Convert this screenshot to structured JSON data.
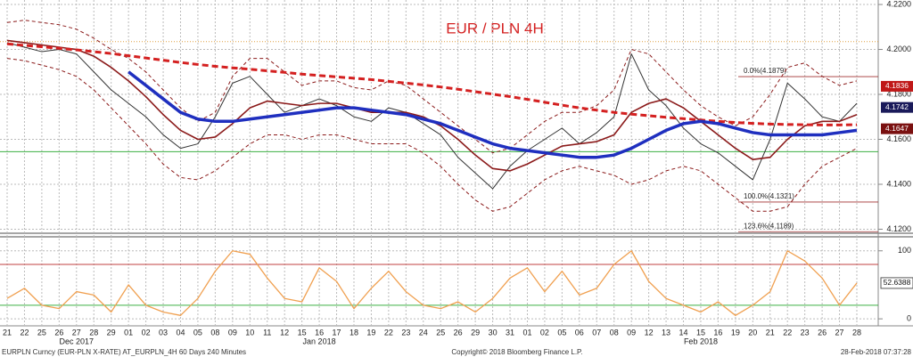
{
  "chart_data": [
    {
      "type": "line",
      "title": "EUR / PLN 4H",
      "categories": [
        "21",
        "22",
        "25",
        "26",
        "27",
        "28",
        "29",
        "01",
        "02",
        "03",
        "04",
        "05",
        "08",
        "09",
        "10",
        "11",
        "12",
        "15",
        "16",
        "17",
        "18",
        "19",
        "22",
        "23",
        "24",
        "25",
        "26",
        "29",
        "30",
        "31",
        "01",
        "02",
        "05",
        "06",
        "07",
        "08",
        "09",
        "12",
        "13",
        "14",
        "15",
        "16",
        "19",
        "20",
        "21",
        "22",
        "23",
        "26",
        "27",
        "28"
      ],
      "x_groups": [
        "Dec 2017",
        "Jan 2018",
        "Feb 2018"
      ],
      "ylim": [
        4.119,
        4.222
      ],
      "yticks": [
        {
          "value": 4.12,
          "label": "4.1200"
        },
        {
          "value": 4.14,
          "label": "4.1400"
        },
        {
          "value": 4.16,
          "label": "4.1600"
        },
        {
          "value": 4.18,
          "label": "4.1800"
        },
        {
          "value": 4.2,
          "label": "4.2000"
        },
        {
          "value": 4.22,
          "label": "4.2200"
        }
      ],
      "grid": true,
      "series": [
        {
          "color": "#8b1a1a",
          "style": "dashed",
          "values": [
            4.212,
            4.213,
            4.212,
            4.211,
            4.209,
            4.205,
            4.2,
            4.196,
            4.19,
            4.182,
            4.174,
            4.168,
            4.172,
            4.188,
            4.196,
            4.196,
            4.19,
            4.184,
            4.186,
            4.186,
            4.183,
            4.182,
            4.186,
            4.184,
            4.178,
            4.172,
            4.166,
            4.16,
            4.154,
            4.156,
            4.162,
            4.168,
            4.172,
            4.172,
            4.175,
            4.182,
            4.2,
            4.198,
            4.19,
            4.182,
            4.175,
            4.17,
            4.166,
            4.17,
            4.18,
            4.192,
            4.194,
            4.188,
            4.184,
            4.186
          ]
        },
        {
          "color": "#8b1a1a",
          "style": "dashed",
          "values": [
            4.196,
            4.195,
            4.193,
            4.191,
            4.188,
            4.182,
            4.174,
            4.166,
            4.158,
            4.149,
            4.143,
            4.142,
            4.146,
            4.152,
            4.158,
            4.162,
            4.162,
            4.16,
            4.162,
            4.162,
            4.16,
            4.158,
            4.158,
            4.158,
            4.154,
            4.148,
            4.14,
            4.133,
            4.128,
            4.13,
            4.136,
            4.142,
            4.146,
            4.148,
            4.146,
            4.144,
            4.14,
            4.142,
            4.146,
            4.148,
            4.146,
            4.14,
            4.134,
            4.128,
            4.128,
            4.13,
            4.14,
            4.148,
            4.152,
            4.156
          ]
        },
        {
          "color": "#333333",
          "style": "thin",
          "values": [
            4.203,
            4.201,
            4.199,
            4.2,
            4.198,
            4.19,
            4.182,
            4.176,
            4.17,
            4.162,
            4.156,
            4.158,
            4.17,
            4.185,
            4.188,
            4.18,
            4.172,
            4.175,
            4.178,
            4.175,
            4.17,
            4.168,
            4.174,
            4.172,
            4.167,
            4.162,
            4.152,
            4.145,
            4.138,
            4.148,
            4.155,
            4.16,
            4.165,
            4.158,
            4.163,
            4.17,
            4.198,
            4.182,
            4.175,
            4.165,
            4.158,
            4.154,
            4.148,
            4.142,
            4.16,
            4.185,
            4.178,
            4.17,
            4.168,
            4.176
          ]
        },
        {
          "color": "#8b1a1a",
          "style": "medium",
          "values": [
            4.204,
            4.203,
            4.202,
            4.201,
            4.2,
            4.197,
            4.192,
            4.186,
            4.179,
            4.171,
            4.164,
            4.16,
            4.161,
            4.167,
            4.174,
            4.177,
            4.176,
            4.175,
            4.176,
            4.176,
            4.174,
            4.172,
            4.172,
            4.172,
            4.17,
            4.166,
            4.16,
            4.153,
            4.147,
            4.146,
            4.149,
            4.153,
            4.157,
            4.158,
            4.159,
            4.162,
            4.172,
            4.176,
            4.178,
            4.174,
            4.168,
            4.162,
            4.156,
            4.151,
            4.152,
            4.16,
            4.166,
            4.168,
            4.168,
            4.171
          ]
        },
        {
          "color": "#d42020",
          "style": "dashed-thick",
          "values": [
            4.2025,
            4.2018,
            4.2012,
            4.2005,
            4.1998,
            4.199,
            4.1982,
            4.1972,
            4.1962,
            4.1952,
            4.1942,
            4.1933,
            4.1925,
            4.1918,
            4.1912,
            4.1905,
            4.1898,
            4.189,
            4.1884,
            4.1878,
            4.1872,
            4.1866,
            4.1858,
            4.185,
            4.1842,
            4.1833,
            4.1823,
            4.1812,
            4.1801,
            4.179,
            4.1778,
            4.1765,
            4.1752,
            4.174,
            4.173,
            4.172,
            4.1712,
            4.1705,
            4.1698,
            4.1692,
            4.1686,
            4.168,
            4.1675,
            4.1671,
            4.1668,
            4.1666,
            4.1665,
            4.1664,
            4.1664,
            4.1665
          ]
        },
        {
          "color": "#1f2fbf",
          "style": "thick",
          "values": [
            null,
            null,
            null,
            null,
            null,
            null,
            null,
            4.19,
            4.184,
            4.178,
            4.172,
            4.169,
            4.168,
            4.168,
            4.169,
            4.17,
            4.171,
            4.172,
            4.173,
            4.174,
            4.174,
            4.173,
            4.172,
            4.171,
            4.169,
            4.167,
            4.164,
            4.161,
            4.158,
            4.156,
            4.155,
            4.154,
            4.153,
            4.152,
            4.152,
            4.153,
            4.156,
            4.16,
            4.164,
            4.167,
            4.168,
            4.167,
            4.165,
            4.163,
            4.162,
            4.162,
            4.162,
            4.162,
            4.163,
            4.164
          ]
        }
      ],
      "hlines": [
        {
          "value": 4.2035,
          "color": "#e0a040"
        },
        {
          "value": 4.1545,
          "color": "#3cb043"
        }
      ],
      "fib_levels": [
        {
          "value": 4.1879,
          "label": "0.0%(4.1879)"
        },
        {
          "value": 4.1321,
          "label": "100.0%(4.1321)"
        },
        {
          "value": 4.1189,
          "label": "123.6%(4.1189)"
        }
      ],
      "value_tags": [
        {
          "value": 4.1836,
          "color": "#c01818"
        },
        {
          "value": 4.1742,
          "color": "#1a1a5a"
        },
        {
          "value": 4.1647,
          "color": "#7a1010"
        }
      ]
    },
    {
      "type": "line",
      "ylim": [
        -9,
        118
      ],
      "yticks": [
        0,
        100
      ],
      "series": [
        {
          "color": "#f0a050",
          "values": [
            30,
            45,
            20,
            15,
            40,
            35,
            10,
            50,
            20,
            10,
            5,
            30,
            70,
            100,
            95,
            60,
            30,
            25,
            75,
            55,
            15,
            45,
            70,
            40,
            20,
            15,
            25,
            10,
            30,
            60,
            75,
            40,
            70,
            35,
            45,
            80,
            100,
            55,
            30,
            20,
            10,
            25,
            5,
            20,
            40,
            100,
            85,
            60,
            20,
            52.6388
          ]
        }
      ],
      "hlines": [
        {
          "value": 80,
          "color": "#c04040"
        },
        {
          "value": 20,
          "color": "#3cb043"
        }
      ],
      "value_tags": [
        {
          "value": 52.6388,
          "color": "#ffffff"
        }
      ]
    }
  ],
  "footer": {
    "left": "EURPLN Curncy (EUR-PLN X-RATE) AT_EURPLN_4H 60 Days 240 Minutes",
    "center": "Copyright© 2018 Bloomberg Finance L.P.",
    "right": "28-Feb-2018 07:37:28"
  }
}
